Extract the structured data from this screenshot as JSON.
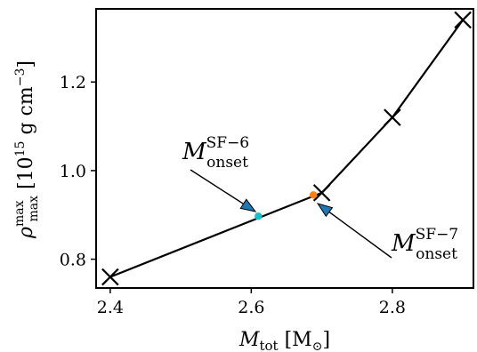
{
  "chart_data": {
    "type": "line",
    "xlim": [
      2.38,
      2.915
    ],
    "ylim": [
      0.735,
      1.365
    ],
    "xticks": [
      2.4,
      2.6,
      2.8
    ],
    "xtick_labels": [
      "2.4",
      "2.6",
      "2.8"
    ],
    "yticks": [
      0.8,
      1.0,
      1.2
    ],
    "ytick_labels": [
      "0.8",
      "1.0",
      "1.2"
    ],
    "xlabel": {
      "main": "M",
      "sub": "tot",
      "unit": "[M",
      "unit_sub": "⊙",
      "unit_close": "]"
    },
    "ylabel": {
      "main": "ρ",
      "sup": "max",
      "sub": "max",
      "unit_open": "[10",
      "unit_exp": "15",
      "unit_mid": " g cm",
      "unit_exp2": "−3",
      "unit_close": "]"
    },
    "series": [
      {
        "x": [
          2.4,
          2.7,
          2.8,
          2.9
        ],
        "y": [
          0.76,
          0.95,
          1.12,
          1.34
        ],
        "color": "#000000",
        "marker": "x"
      }
    ],
    "onset_points": [
      {
        "x": 2.61,
        "y": 0.897,
        "color": "#17becf"
      },
      {
        "x": 2.688,
        "y": 0.945,
        "color": "#ff7f0e"
      }
    ],
    "annotations": [
      {
        "main": "M",
        "sup": "SF−6",
        "sub": "onset",
        "color": "#1f77b4"
      },
      {
        "main": "M",
        "sup": "SF−7",
        "sub": "onset",
        "color": "#1f77b4"
      }
    ],
    "grid": false
  }
}
